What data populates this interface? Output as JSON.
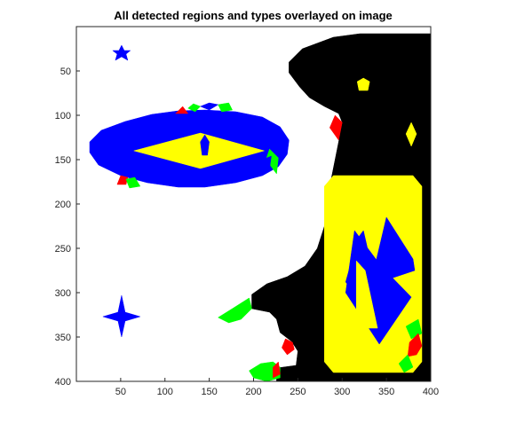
{
  "chart_data": {
    "type": "image",
    "title": "All detected regions and types overlayed on image",
    "xlabel": "",
    "ylabel": "",
    "xlim": [
      0,
      400
    ],
    "ylim": [
      400,
      0
    ],
    "y_reversed": true,
    "xticks": [
      50,
      100,
      150,
      200,
      250,
      300,
      350,
      400
    ],
    "yticks": [
      50,
      100,
      150,
      200,
      250,
      300,
      350,
      400
    ],
    "grid": false,
    "legend": "none",
    "colors": {
      "background": "#ffffff",
      "dark_region": "#000000",
      "type_blue": "#0000ff",
      "type_yellow": "#ffff00",
      "type_red": "#ff0000",
      "type_green": "#00ff00"
    },
    "regions": [
      {
        "id": "black-region",
        "fill": "#000000",
        "points": [
          [
            240,
            52
          ],
          [
            240,
            40
          ],
          [
            255,
            25
          ],
          [
            290,
            12
          ],
          [
            320,
            8
          ],
          [
            405,
            8
          ],
          [
            405,
            400
          ],
          [
            226,
            400
          ],
          [
            226,
            385
          ],
          [
            248,
            382
          ],
          [
            250,
            366
          ],
          [
            243,
            355
          ],
          [
            230,
            345
          ],
          [
            226,
            330
          ],
          [
            218,
            322
          ],
          [
            198,
            318
          ],
          [
            198,
            302
          ],
          [
            215,
            290
          ],
          [
            238,
            282
          ],
          [
            258,
            270
          ],
          [
            272,
            250
          ],
          [
            280,
            225
          ],
          [
            283,
            195
          ],
          [
            288,
            170
          ],
          [
            292,
            150
          ],
          [
            296,
            130
          ],
          [
            300,
            108
          ],
          [
            296,
            98
          ],
          [
            280,
            90
          ],
          [
            263,
            80
          ],
          [
            252,
            68
          ]
        ]
      },
      {
        "id": "large-ellipse",
        "fill": "#0000ff",
        "points": [
          [
            15,
            130
          ],
          [
            28,
            117
          ],
          [
            55,
            107
          ],
          [
            85,
            99
          ],
          [
            115,
            95
          ],
          [
            145,
            94
          ],
          [
            180,
            96
          ],
          [
            210,
            102
          ],
          [
            230,
            113
          ],
          [
            240,
            128
          ],
          [
            238,
            144
          ],
          [
            228,
            158
          ],
          [
            210,
            168
          ],
          [
            180,
            176
          ],
          [
            145,
            181
          ],
          [
            115,
            181
          ],
          [
            80,
            176
          ],
          [
            50,
            168
          ],
          [
            25,
            156
          ],
          [
            15,
            142
          ]
        ]
      },
      {
        "id": "red-patch-1",
        "fill": "#ff0000",
        "points": [
          [
            112,
            98
          ],
          [
            120,
            90
          ],
          [
            126,
            98
          ]
        ]
      },
      {
        "id": "green-patch-1",
        "fill": "#00ff00",
        "points": [
          [
            126,
            92
          ],
          [
            132,
            87
          ],
          [
            140,
            90
          ],
          [
            134,
            96
          ]
        ]
      },
      {
        "id": "blue-patch-1",
        "fill": "#0000ff",
        "points": [
          [
            140,
            90
          ],
          [
            150,
            86
          ],
          [
            160,
            88
          ],
          [
            150,
            94
          ]
        ]
      },
      {
        "id": "green-patch-2",
        "fill": "#00ff00",
        "points": [
          [
            160,
            88
          ],
          [
            172,
            86
          ],
          [
            176,
            94
          ],
          [
            164,
            96
          ]
        ]
      },
      {
        "id": "red-patch-2",
        "fill": "#ff0000",
        "points": [
          [
            50,
            168
          ],
          [
            58,
            170
          ],
          [
            56,
            178
          ],
          [
            46,
            178
          ]
        ]
      },
      {
        "id": "green-patch-3",
        "fill": "#00ff00",
        "points": [
          [
            56,
            172
          ],
          [
            66,
            170
          ],
          [
            72,
            180
          ],
          [
            60,
            182
          ]
        ]
      },
      {
        "id": "green-patch-4",
        "fill": "#00ff00",
        "points": [
          [
            218,
            138
          ],
          [
            228,
            148
          ],
          [
            226,
            166
          ],
          [
            220,
            158
          ],
          [
            214,
            150
          ]
        ]
      },
      {
        "id": "blue-patch-2",
        "fill": "#0000ff",
        "points": [
          [
            210,
            150
          ],
          [
            220,
            146
          ],
          [
            218,
            160
          ],
          [
            210,
            158
          ]
        ]
      },
      {
        "id": "red-patch-3",
        "fill": "#ff0000",
        "points": [
          [
            292,
            100
          ],
          [
            300,
            108
          ],
          [
            296,
            128
          ],
          [
            286,
            114
          ]
        ]
      },
      {
        "id": "inner-diamond",
        "fill": "#ffff00",
        "points": [
          [
            65,
            140
          ],
          [
            140,
            120
          ],
          [
            212,
            140
          ],
          [
            140,
            160
          ]
        ]
      },
      {
        "id": "small-diamond",
        "fill": "#0000ff",
        "points": [
          [
            140,
            130
          ],
          [
            145,
            122
          ],
          [
            150,
            130
          ],
          [
            148,
            145
          ],
          [
            142,
            145
          ]
        ]
      },
      {
        "id": "star-top",
        "fill": "#0000ff",
        "points": [
          [
            51,
            21
          ],
          [
            54,
            27
          ],
          [
            61,
            27
          ],
          [
            56,
            31
          ],
          [
            58,
            38
          ],
          [
            51,
            34
          ],
          [
            44,
            38
          ],
          [
            46,
            31
          ],
          [
            41,
            27
          ],
          [
            48,
            27
          ]
        ]
      },
      {
        "id": "star-bottom",
        "fill": "#0000ff",
        "points": [
          [
            51,
            303
          ],
          [
            55,
            322
          ],
          [
            72,
            327
          ],
          [
            55,
            332
          ],
          [
            51,
            350
          ],
          [
            47,
            332
          ],
          [
            30,
            327
          ],
          [
            47,
            322
          ]
        ]
      },
      {
        "id": "pentagon-top",
        "fill": "#ffff00",
        "points": [
          [
            324,
            58
          ],
          [
            331,
            62
          ],
          [
            329,
            72
          ],
          [
            319,
            72
          ],
          [
            317,
            62
          ]
        ]
      },
      {
        "id": "diamond-right",
        "fill": "#ffff00",
        "points": [
          [
            378,
            108
          ],
          [
            384,
            121
          ],
          [
            378,
            135
          ],
          [
            372,
            121
          ]
        ]
      },
      {
        "id": "rounded-rect",
        "fill": "#ffff00",
        "points": [
          [
            280,
            180
          ],
          [
            290,
            168
          ],
          [
            380,
            168
          ],
          [
            390,
            180
          ],
          [
            390,
            378
          ],
          [
            380,
            390
          ],
          [
            290,
            390
          ],
          [
            280,
            378
          ]
        ]
      },
      {
        "id": "blue-shape-upper",
        "fill": "#0000ff",
        "points": [
          [
            304,
            288
          ],
          [
            318,
            238
          ],
          [
            324,
            230
          ],
          [
            335,
            278
          ],
          [
            350,
            215
          ],
          [
            380,
            262
          ],
          [
            382,
            275
          ],
          [
            352,
            285
          ],
          [
            340,
            305
          ],
          [
            322,
            310
          ]
        ]
      },
      {
        "id": "blue-shape-lower",
        "fill": "#0000ff",
        "points": [
          [
            314,
            230
          ],
          [
            344,
            270
          ],
          [
            378,
            305
          ],
          [
            342,
            358
          ],
          [
            304,
            300
          ]
        ]
      },
      {
        "id": "yellow-notch",
        "fill": "#ffff00",
        "points": [
          [
            316,
            264
          ],
          [
            326,
            275
          ],
          [
            340,
            340
          ],
          [
            316,
            340
          ]
        ]
      },
      {
        "id": "green-left-crescent",
        "fill": "#00ff00",
        "points": [
          [
            160,
            328
          ],
          [
            176,
            318
          ],
          [
            195,
            306
          ],
          [
            198,
            318
          ],
          [
            186,
            330
          ],
          [
            172,
            334
          ]
        ]
      },
      {
        "id": "red-small-1",
        "fill": "#ff0000",
        "points": [
          [
            236,
            352
          ],
          [
            244,
            356
          ],
          [
            246,
            364
          ],
          [
            238,
            370
          ],
          [
            232,
            362
          ]
        ]
      },
      {
        "id": "green-bottom-crescent",
        "fill": "#00ff00",
        "points": [
          [
            195,
            388
          ],
          [
            208,
            380
          ],
          [
            222,
            378
          ],
          [
            230,
            384
          ],
          [
            230,
            396
          ],
          [
            215,
            400
          ],
          [
            200,
            396
          ]
        ]
      },
      {
        "id": "red-small-2",
        "fill": "#ff0000",
        "points": [
          [
            222,
            384
          ],
          [
            228,
            378
          ],
          [
            230,
            392
          ],
          [
            222,
            396
          ]
        ]
      },
      {
        "id": "green-right-1",
        "fill": "#00ff00",
        "points": [
          [
            372,
            338
          ],
          [
            386,
            330
          ],
          [
            390,
            346
          ],
          [
            378,
            352
          ]
        ]
      },
      {
        "id": "red-right-1",
        "fill": "#ff0000",
        "points": [
          [
            376,
            356
          ],
          [
            386,
            346
          ],
          [
            390,
            360
          ],
          [
            384,
            370
          ],
          [
            374,
            372
          ]
        ]
      },
      {
        "id": "green-right-2",
        "fill": "#00ff00",
        "points": [
          [
            364,
            380
          ],
          [
            374,
            370
          ],
          [
            380,
            384
          ],
          [
            370,
            390
          ]
        ]
      }
    ]
  }
}
